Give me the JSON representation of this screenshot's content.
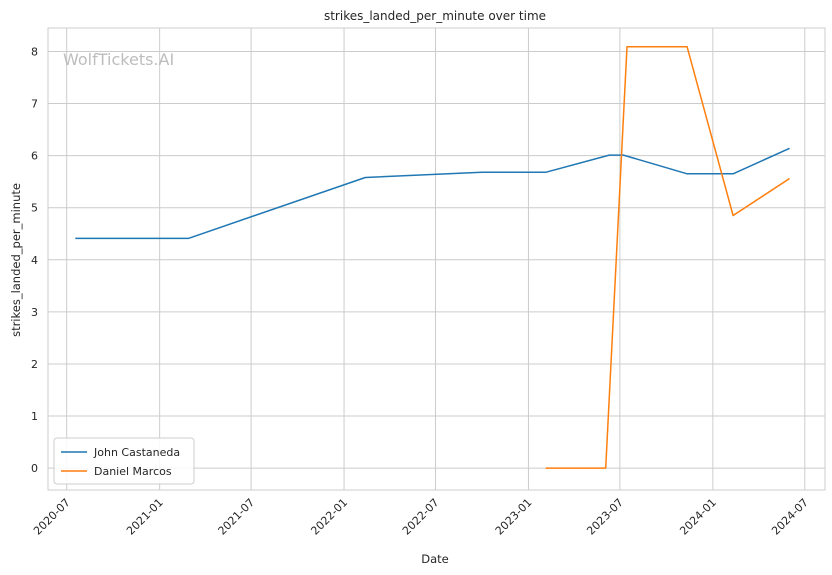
{
  "chart_data": {
    "type": "line",
    "title": "strikes_landed_per_minute over time",
    "xlabel": "Date",
    "ylabel": "strikes_landed_per_minute",
    "watermark": "WolfTickets.AI",
    "x_range": [
      "2020-05-25",
      "2024-08-10"
    ],
    "ylim": [
      -0.42,
      8.45
    ],
    "y_ticks": [
      0,
      1,
      2,
      3,
      4,
      5,
      6,
      7,
      8
    ],
    "x_ticks": [
      {
        "date": "2020-07-01",
        "label": "2020-07"
      },
      {
        "date": "2021-01-01",
        "label": "2021-01"
      },
      {
        "date": "2021-07-01",
        "label": "2021-07"
      },
      {
        "date": "2022-01-01",
        "label": "2022-01"
      },
      {
        "date": "2022-07-01",
        "label": "2022-07"
      },
      {
        "date": "2023-01-01",
        "label": "2023-01"
      },
      {
        "date": "2023-07-01",
        "label": "2023-07"
      },
      {
        "date": "2024-01-01",
        "label": "2024-01"
      },
      {
        "date": "2024-07-01",
        "label": "2024-07"
      }
    ],
    "grid": true,
    "legend_position": "lower-left",
    "series": [
      {
        "name": "John Castaneda",
        "color": "#1f77b4",
        "points": [
          {
            "x": "2020-07-18",
            "y": 4.41
          },
          {
            "x": "2021-02-27",
            "y": 4.41
          },
          {
            "x": "2022-02-12",
            "y": 5.58
          },
          {
            "x": "2022-10-01",
            "y": 5.68
          },
          {
            "x": "2023-02-04",
            "y": 5.68
          },
          {
            "x": "2023-06-10",
            "y": 6.01
          },
          {
            "x": "2023-07-08",
            "y": 6.01
          },
          {
            "x": "2023-11-11",
            "y": 5.65
          },
          {
            "x": "2024-02-10",
            "y": 5.65
          },
          {
            "x": "2024-06-01",
            "y": 6.14
          }
        ]
      },
      {
        "name": "Daniel Marcos",
        "color": "#ff7f0e",
        "points": [
          {
            "x": "2023-02-04",
            "y": 0.0
          },
          {
            "x": "2023-06-03",
            "y": 0.0
          },
          {
            "x": "2023-07-15",
            "y": 8.09
          },
          {
            "x": "2023-11-11",
            "y": 8.09
          },
          {
            "x": "2024-02-10",
            "y": 4.85
          },
          {
            "x": "2024-06-01",
            "y": 5.56
          }
        ]
      }
    ]
  }
}
